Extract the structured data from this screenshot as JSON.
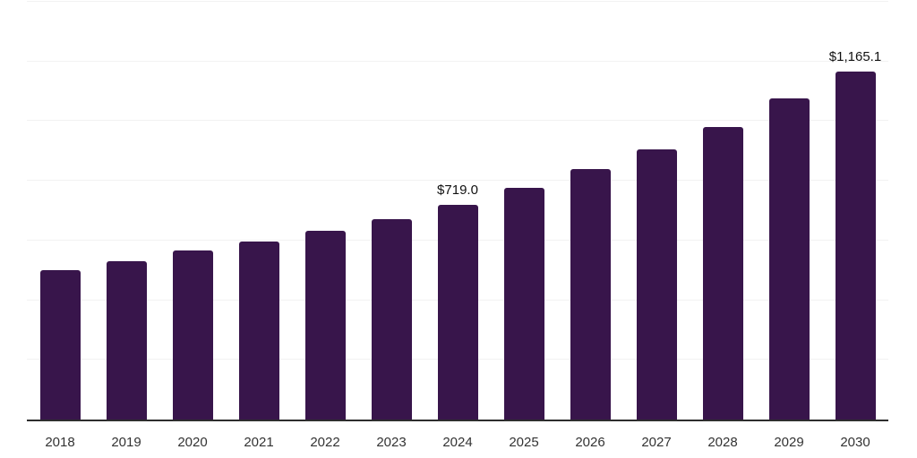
{
  "chart_data": {
    "type": "bar",
    "title": "",
    "xlabel": "",
    "ylabel": "",
    "categories": [
      "2018",
      "2019",
      "2020",
      "2021",
      "2022",
      "2023",
      "2024",
      "2025",
      "2026",
      "2027",
      "2028",
      "2029",
      "2030"
    ],
    "values": [
      500.0,
      530.0,
      566.0,
      598.0,
      633.0,
      673.0,
      719.0,
      776.0,
      839.0,
      905.0,
      981.0,
      1076.0,
      1165.1
    ],
    "value_labels": [
      null,
      null,
      null,
      null,
      null,
      null,
      "$719.0",
      null,
      null,
      null,
      null,
      null,
      "$1,165.1"
    ],
    "ylim": [
      0,
      1400
    ],
    "grid_step": 200,
    "grid": "horizontal-only, light gray, no y-axis tick labels",
    "legend": "none",
    "colors": {
      "bar": "#38154b",
      "axis": "#2e2e2e",
      "grid": "#f2f2f2",
      "tick_label": "#333333",
      "data_label": "#111111",
      "background": "#ffffff"
    }
  }
}
